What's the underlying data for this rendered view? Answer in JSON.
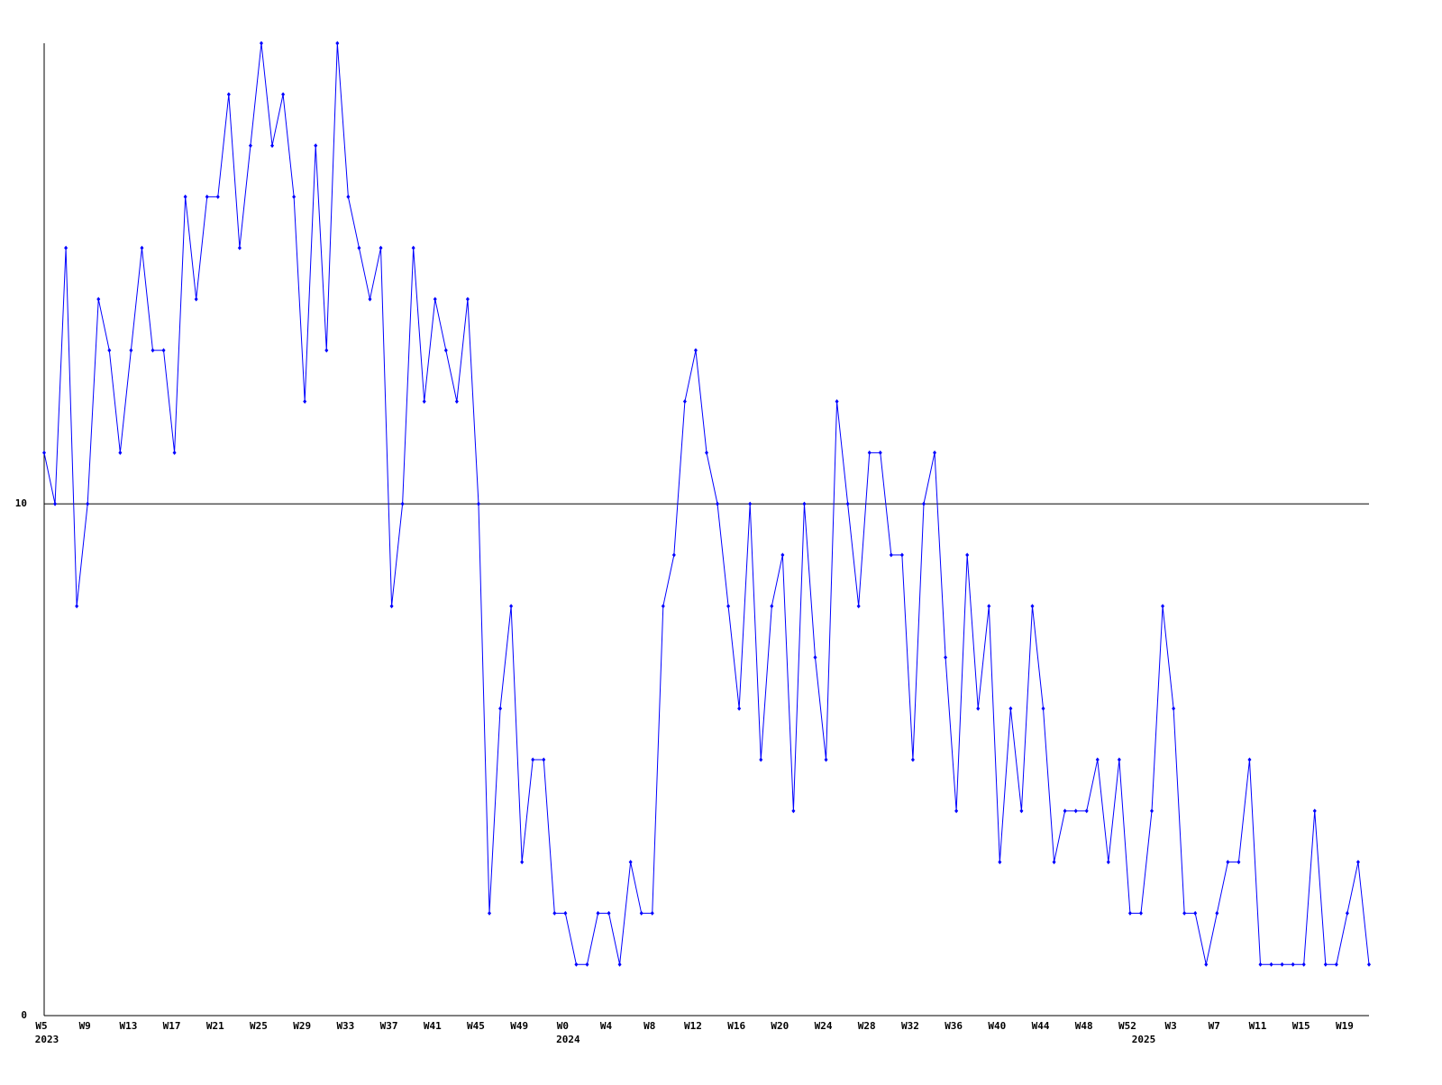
{
  "chart_data": {
    "type": "line",
    "color": "#0000ff",
    "categories": [
      "W5",
      null,
      null,
      null,
      "W9",
      null,
      null,
      null,
      "W13",
      null,
      null,
      null,
      "W17",
      null,
      null,
      null,
      "W21",
      null,
      null,
      null,
      "W25",
      null,
      null,
      null,
      "W29",
      null,
      null,
      null,
      "W33",
      null,
      null,
      null,
      "W37",
      null,
      null,
      null,
      "W41",
      null,
      null,
      null,
      "W45",
      null,
      null,
      null,
      "W49",
      null,
      null,
      null,
      "W0",
      null,
      null,
      null,
      "W4",
      null,
      null,
      null,
      "W8",
      null,
      null,
      null,
      "W12",
      null,
      null,
      null,
      "W16",
      null,
      null,
      null,
      "W20",
      null,
      null,
      null,
      "W24",
      null,
      null,
      null,
      "W28",
      null,
      null,
      null,
      "W32",
      null,
      null,
      null,
      "W36",
      null,
      null,
      null,
      "W40",
      null,
      null,
      null,
      "W44",
      null,
      null,
      null,
      "W48",
      null,
      null,
      null,
      "W52",
      null,
      null,
      null,
      "W3",
      null,
      null,
      null,
      "W7",
      null,
      null,
      null,
      "W11",
      null,
      null,
      null,
      "W15",
      null,
      null,
      null,
      "W19",
      null,
      null
    ],
    "year_labels": [
      {
        "at": 0,
        "label": "2023"
      },
      {
        "at": 48,
        "label": "2024"
      },
      {
        "at": 101,
        "label": "2025"
      }
    ],
    "values": [
      11,
      10,
      15,
      8,
      10,
      14,
      13,
      11,
      13,
      15,
      13,
      13,
      11,
      16,
      14,
      16,
      16,
      18,
      15,
      17,
      19,
      17,
      18,
      16,
      12,
      17,
      13,
      19,
      16,
      15,
      14,
      15,
      8,
      10,
      15,
      12,
      14,
      13,
      12,
      14,
      10,
      2,
      6,
      8,
      3,
      5,
      5,
      2,
      2,
      1,
      1,
      2,
      2,
      1,
      3,
      2,
      2,
      8,
      9,
      12,
      13,
      11,
      10,
      8,
      6,
      10,
      5,
      8,
      9,
      4,
      10,
      7,
      5,
      12,
      10,
      8,
      11,
      11,
      9,
      9,
      5,
      10,
      11,
      7,
      4,
      9,
      6,
      8,
      3,
      6,
      4,
      8,
      6,
      3,
      4,
      4,
      4,
      5,
      3,
      5,
      2,
      2,
      4,
      8,
      6,
      2,
      2,
      1,
      2,
      3,
      3,
      5,
      1,
      1,
      1,
      1,
      1,
      4,
      1,
      1,
      2,
      3,
      1
    ],
    "ylim": [
      0,
      19
    ],
    "yticks": [
      0,
      10
    ],
    "grid": true
  }
}
